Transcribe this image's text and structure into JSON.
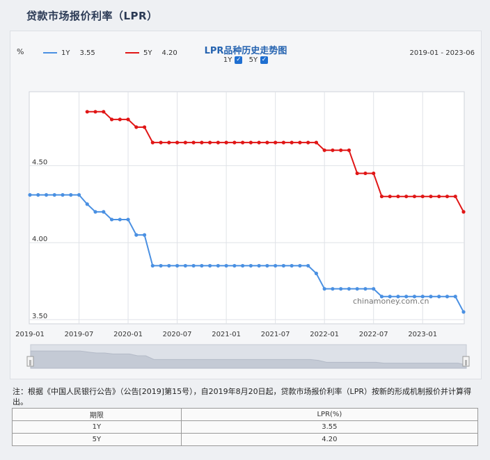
{
  "page": {
    "title": "贷款市场报价利率（LPR）"
  },
  "chart": {
    "title": "LPR品种历史走势图",
    "toggles": [
      {
        "label": "1Y",
        "checked": true
      },
      {
        "label": "5Y",
        "checked": true
      }
    ],
    "unit": "%",
    "legend": [
      {
        "name": "1Y",
        "value": "3.55",
        "color": "#4a90e2"
      },
      {
        "name": "5Y",
        "value": "4.20",
        "color": "#e01616"
      }
    ],
    "range_label": "2019-01 - 2023-06",
    "watermark": "chinamoney.com.cn"
  },
  "chart_data": {
    "type": "line",
    "x_tick_labels": [
      "2019-01",
      "2019-07",
      "2020-01",
      "2020-07",
      "2021-01",
      "2021-07",
      "2022-01",
      "2022-07",
      "2023-01"
    ],
    "y_tick_labels": [
      "3.50",
      "4.00",
      "4.50"
    ],
    "ylim": [
      3.5,
      4.98
    ],
    "grid": true,
    "legend_position": "top-left",
    "series": [
      {
        "name": "1Y",
        "color": "#4a90e2",
        "x": [
          "2019-01",
          "2019-02",
          "2019-03",
          "2019-04",
          "2019-05",
          "2019-06",
          "2019-07",
          "2019-08",
          "2019-09",
          "2019-10",
          "2019-11",
          "2019-12",
          "2020-01",
          "2020-02",
          "2020-03",
          "2020-04",
          "2020-05",
          "2020-06",
          "2020-07",
          "2020-08",
          "2020-09",
          "2020-10",
          "2020-11",
          "2020-12",
          "2021-01",
          "2021-02",
          "2021-03",
          "2021-04",
          "2021-05",
          "2021-06",
          "2021-07",
          "2021-08",
          "2021-09",
          "2021-10",
          "2021-11",
          "2021-12",
          "2022-01",
          "2022-02",
          "2022-03",
          "2022-04",
          "2022-05",
          "2022-06",
          "2022-07",
          "2022-08",
          "2022-09",
          "2022-10",
          "2022-11",
          "2022-12",
          "2023-01",
          "2023-02",
          "2023-03",
          "2023-04",
          "2023-05",
          "2023-06"
        ],
        "values": [
          4.31,
          4.31,
          4.31,
          4.31,
          4.31,
          4.31,
          4.31,
          4.25,
          4.2,
          4.2,
          4.15,
          4.15,
          4.15,
          4.05,
          4.05,
          3.85,
          3.85,
          3.85,
          3.85,
          3.85,
          3.85,
          3.85,
          3.85,
          3.85,
          3.85,
          3.85,
          3.85,
          3.85,
          3.85,
          3.85,
          3.85,
          3.85,
          3.85,
          3.85,
          3.85,
          3.8,
          3.7,
          3.7,
          3.7,
          3.7,
          3.7,
          3.7,
          3.7,
          3.65,
          3.65,
          3.65,
          3.65,
          3.65,
          3.65,
          3.65,
          3.65,
          3.65,
          3.65,
          3.55
        ]
      },
      {
        "name": "5Y",
        "color": "#e01616",
        "x": [
          "2019-08",
          "2019-09",
          "2019-10",
          "2019-11",
          "2019-12",
          "2020-01",
          "2020-02",
          "2020-03",
          "2020-04",
          "2020-05",
          "2020-06",
          "2020-07",
          "2020-08",
          "2020-09",
          "2020-10",
          "2020-11",
          "2020-12",
          "2021-01",
          "2021-02",
          "2021-03",
          "2021-04",
          "2021-05",
          "2021-06",
          "2021-07",
          "2021-08",
          "2021-09",
          "2021-10",
          "2021-11",
          "2021-12",
          "2022-01",
          "2022-02",
          "2022-03",
          "2022-04",
          "2022-05",
          "2022-06",
          "2022-07",
          "2022-08",
          "2022-09",
          "2022-10",
          "2022-11",
          "2022-12",
          "2023-01",
          "2023-02",
          "2023-03",
          "2023-04",
          "2023-05",
          "2023-06"
        ],
        "values": [
          4.85,
          4.85,
          4.85,
          4.8,
          4.8,
          4.8,
          4.75,
          4.75,
          4.65,
          4.65,
          4.65,
          4.65,
          4.65,
          4.65,
          4.65,
          4.65,
          4.65,
          4.65,
          4.65,
          4.65,
          4.65,
          4.65,
          4.65,
          4.65,
          4.65,
          4.65,
          4.65,
          4.65,
          4.65,
          4.6,
          4.6,
          4.6,
          4.6,
          4.45,
          4.45,
          4.45,
          4.3,
          4.3,
          4.3,
          4.3,
          4.3,
          4.3,
          4.3,
          4.3,
          4.3,
          4.3,
          4.2
        ]
      }
    ]
  },
  "note": "注：根据《中国人民银行公告》（公告[2019]第15号），自2019年8月20日起，贷款市场报价利率（LPR）按新的形成机制报价并计算得出。",
  "table": {
    "headers": [
      "期限",
      "LPR(%)"
    ],
    "rows": [
      [
        "1Y",
        "3.55"
      ],
      [
        "5Y",
        "4.20"
      ]
    ]
  }
}
